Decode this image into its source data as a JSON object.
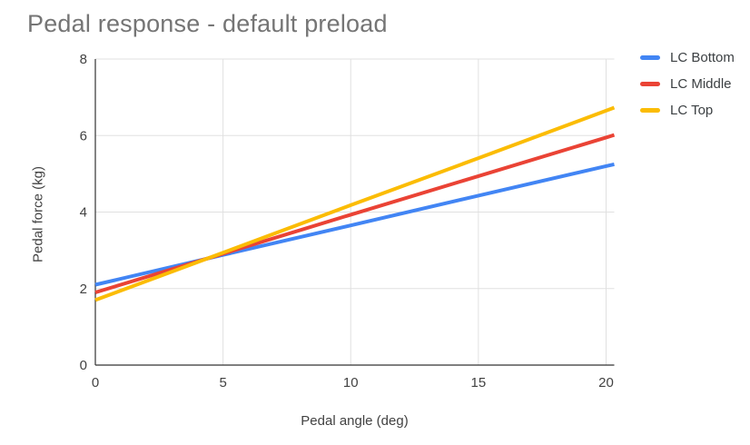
{
  "chart_data": {
    "type": "line",
    "title": "Pedal response - default preload",
    "xlabel": "Pedal angle (deg)",
    "ylabel": "Pedal force (kg)",
    "x": [
      0,
      5,
      10,
      15,
      20
    ],
    "xlim": [
      0,
      20
    ],
    "ylim": [
      0,
      8
    ],
    "x_ticks": [
      0,
      5,
      10,
      15,
      20
    ],
    "y_ticks": [
      0,
      2,
      4,
      6,
      8
    ],
    "grid": true,
    "legend_position": "right",
    "series": [
      {
        "name": "LC Bottom",
        "color": "#4285F4",
        "values": [
          2.1,
          2.88,
          3.65,
          4.43,
          5.2
        ]
      },
      {
        "name": "LC Middle",
        "color": "#EA4335",
        "values": [
          1.9,
          2.91,
          3.93,
          4.94,
          5.95
        ]
      },
      {
        "name": "LC Top",
        "color": "#FBBC04",
        "values": [
          1.7,
          2.94,
          4.18,
          5.41,
          6.65
        ]
      }
    ]
  },
  "theme": {
    "background": "#ffffff",
    "title_text": "#757575",
    "axis_text": "#424242",
    "legend_text": "#3c4043",
    "gridline": "#e0e0e0",
    "axis_line": "#333333"
  }
}
